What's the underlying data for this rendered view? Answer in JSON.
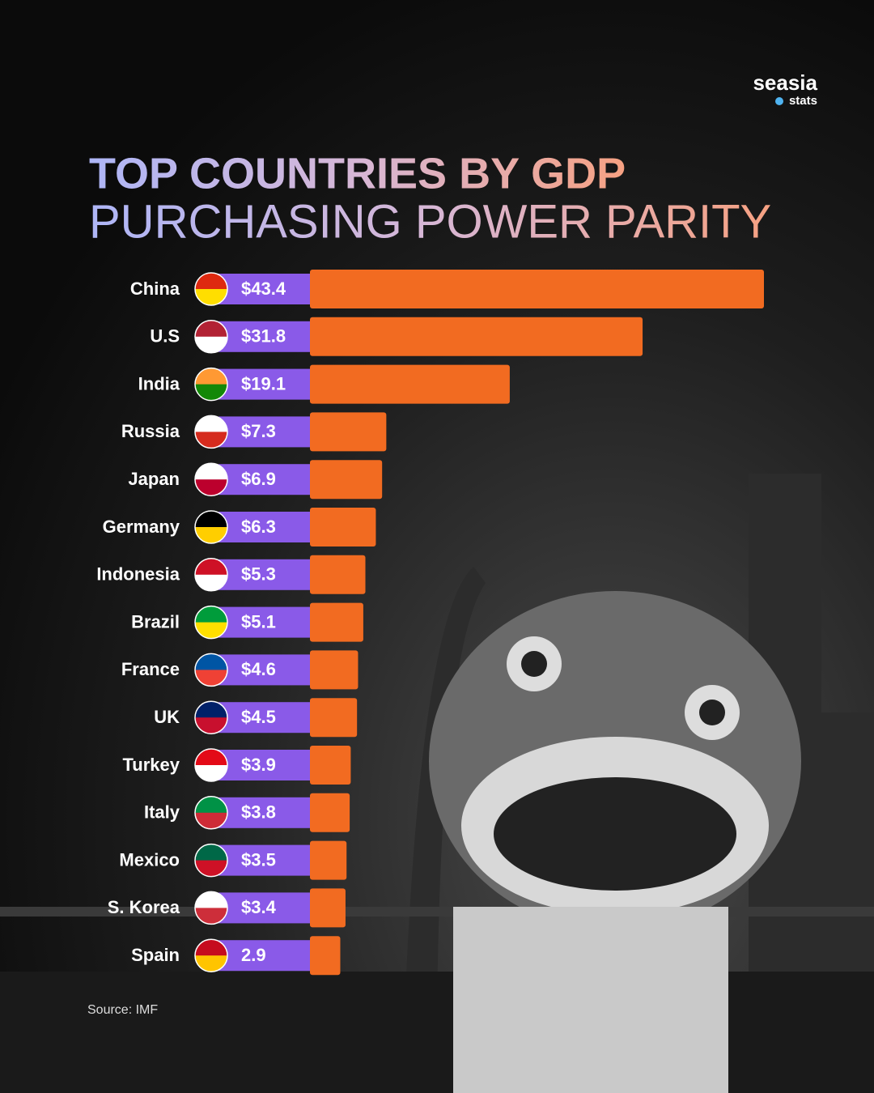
{
  "chart_data": {
    "type": "bar",
    "orientation": "horizontal",
    "brand": "seasia",
    "brand_sub": "stats",
    "title": "TOP COUNTRIES BY GDP",
    "subtitle": "PURCHASING POWER PARITY",
    "source": "Source: IMF",
    "categories": [
      "China",
      "U.S",
      "India",
      "Russia",
      "Japan",
      "Germany",
      "Indonesia",
      "Brazil",
      "France",
      "UK",
      "Turkey",
      "Italy",
      "Mexico",
      "S. Korea",
      "Spain"
    ],
    "values": [
      43.4,
      31.8,
      19.1,
      7.3,
      6.9,
      6.3,
      5.3,
      5.1,
      4.6,
      4.5,
      3.9,
      3.8,
      3.5,
      3.4,
      2.9
    ],
    "value_labels": [
      "$43.4",
      "$31.8",
      "$19.1",
      "$7.3",
      "$6.9",
      "$6.3",
      "$5.3",
      "$5.1",
      "$4.6",
      "$4.5",
      "$3.9",
      "$3.8",
      "$3.5",
      "$3.4",
      "2.9"
    ],
    "color": "#f26b21",
    "label_color": "#8a5ae8"
  }
}
